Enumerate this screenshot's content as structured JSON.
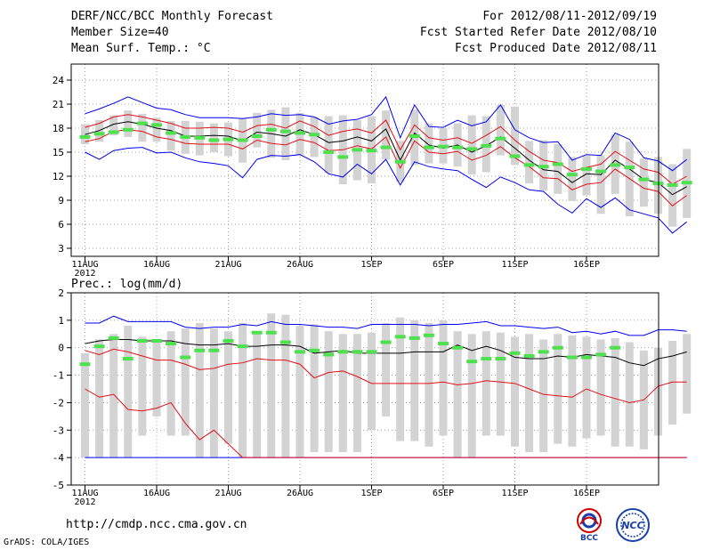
{
  "header": {
    "title": "DERF/NCC/BCC Monthly Forecast",
    "member_size": "Member Size=40",
    "variable": "Mean Surf. Temp.: °C",
    "period": "For 2012/08/11-2012/09/19",
    "started": "Fcst Started Refer Date 2012/08/10",
    "produced": "Fcst Produced Date 2012/08/11"
  },
  "footer": {
    "url": "http://cmdp.ncc.cma.gov.cn",
    "grads": "GrADS: COLA/IGES",
    "logo_left": "BCC",
    "logo_right": "NCC"
  },
  "colors": {
    "mean": "#000000",
    "inner": "#e0101a",
    "outer": "#0000ee",
    "obs": "#4ee04e",
    "box": "#d3d3d3",
    "grid": "#888888"
  },
  "chart_data": [
    {
      "type": "line",
      "title": "Mean Surf. Temp.: °C",
      "x_ticks": [
        "11AUG\n2012",
        "16AUG",
        "21AUG",
        "26AUG",
        "1SEP",
        "6SEP",
        "11SEP",
        "16SEP"
      ],
      "ylim": [
        2,
        26
      ],
      "yticks": [
        3,
        6,
        9,
        12,
        15,
        18,
        21,
        24
      ],
      "series": [
        {
          "name": "max",
          "values": [
            19.8,
            20.4,
            21.1,
            21.9,
            21.2,
            20.5,
            20.3,
            19.7,
            19.3,
            19.3,
            19.3,
            19.2,
            19.4,
            19.8,
            19.6,
            19.7,
            19.4,
            18.5,
            18.9,
            19.1,
            19.7,
            21.9,
            16.8,
            20.9,
            18.2,
            18.1,
            19.0,
            18.3,
            18.8,
            20.9,
            17.8,
            16.8,
            16.2,
            16.3,
            14.0,
            14.7,
            14.6,
            17.4,
            16.6,
            14.3,
            13.9,
            12.7,
            14.1
          ]
        },
        {
          "name": "p75",
          "values": [
            18.1,
            18.6,
            19.4,
            19.7,
            19.4,
            19.0,
            18.6,
            18.0,
            18.0,
            18.1,
            18.0,
            17.5,
            18.3,
            18.5,
            18.0,
            18.9,
            18.2,
            17.1,
            17.6,
            17.9,
            17.4,
            19.0,
            15.3,
            18.4,
            16.8,
            16.5,
            16.8,
            16.1,
            17.1,
            18.2,
            16.5,
            15.1,
            14.0,
            13.7,
            12.6,
            13.1,
            13.5,
            15.1,
            14.0,
            12.9,
            12.5,
            11.0,
            12.0
          ]
        },
        {
          "name": "mean",
          "values": [
            17.2,
            17.7,
            18.5,
            18.8,
            18.5,
            18.0,
            17.7,
            17.0,
            17.0,
            17.1,
            17.0,
            16.4,
            17.5,
            17.3,
            17.0,
            17.8,
            17.2,
            16.2,
            16.4,
            16.9,
            16.4,
            17.9,
            14.0,
            17.4,
            15.9,
            15.5,
            15.9,
            15.0,
            15.8,
            16.9,
            15.5,
            14.0,
            12.8,
            12.6,
            11.2,
            12.3,
            12.2,
            14.0,
            12.9,
            11.6,
            11.2,
            9.7,
            10.7
          ]
        },
        {
          "name": "p25",
          "values": [
            16.3,
            16.7,
            17.6,
            17.8,
            17.6,
            16.9,
            16.6,
            16.1,
            16.0,
            16.0,
            16.0,
            15.4,
            16.5,
            16.1,
            15.9,
            16.6,
            16.2,
            15.2,
            15.3,
            15.8,
            15.4,
            16.9,
            13.0,
            16.4,
            15.0,
            14.8,
            15.1,
            14.0,
            14.6,
            15.7,
            14.3,
            13.2,
            11.8,
            11.7,
            10.3,
            11.0,
            11.2,
            12.9,
            11.7,
            10.5,
            10.1,
            8.3,
            9.6
          ]
        },
        {
          "name": "min",
          "values": [
            15.0,
            14.1,
            15.2,
            15.5,
            15.6,
            14.9,
            15.0,
            14.3,
            13.8,
            13.6,
            13.3,
            11.8,
            14.1,
            14.6,
            14.5,
            14.7,
            13.8,
            12.3,
            11.9,
            13.5,
            12.3,
            14.1,
            10.9,
            13.8,
            13.2,
            12.9,
            12.7,
            11.6,
            10.6,
            11.9,
            11.2,
            10.3,
            10.1,
            8.5,
            7.4,
            9.2,
            8.1,
            9.3,
            7.8,
            7.3,
            6.8,
            4.9,
            6.3
          ]
        },
        {
          "name": "obs",
          "values": [
            16.9,
            17.3,
            17.5,
            17.8,
            18.6,
            18.4,
            17.4,
            16.9,
            16.8,
            16.5,
            16.6,
            16.5,
            17.0,
            17.8,
            17.6,
            17.4,
            17.2,
            15.0,
            14.4,
            15.3,
            15.2,
            15.6,
            13.8,
            17.0,
            15.6,
            15.7,
            15.6,
            15.4,
            15.8,
            16.7,
            14.5,
            13.4,
            13.2,
            13.5,
            12.2,
            12.9,
            12.6,
            13.4,
            13.1,
            11.6,
            11.1,
            10.9,
            11.2
          ]
        },
        {
          "name": "box_high",
          "values": [
            18.5,
            19.0,
            19.6,
            20.2,
            19.8,
            19.3,
            18.9,
            18.9,
            18.8,
            18.6,
            18.7,
            19.2,
            19.9,
            20.3,
            20.6,
            19.9,
            19.4,
            19.5,
            19.6,
            19.0,
            19.5,
            20.2,
            16.4,
            20.3,
            18.6,
            18.0,
            18.6,
            19.6,
            19.5,
            20.9,
            20.7,
            16.4,
            16.5,
            16.0,
            14.4,
            14.6,
            14.6,
            17.2,
            16.3,
            14.2,
            14.4,
            13.5,
            15.4
          ]
        },
        {
          "name": "box_low",
          "values": [
            16.0,
            16.3,
            17.1,
            16.9,
            16.3,
            16.3,
            15.2,
            14.8,
            14.6,
            15.0,
            14.5,
            13.7,
            15.6,
            14.3,
            14.0,
            14.7,
            14.4,
            12.4,
            11.0,
            11.5,
            11.1,
            14.1,
            11.3,
            13.4,
            13.6,
            13.6,
            13.2,
            12.2,
            12.5,
            14.6,
            13.4,
            11.1,
            10.2,
            9.8,
            8.9,
            9.6,
            7.3,
            9.8,
            7.0,
            8.2,
            7.3,
            5.7,
            6.8
          ]
        }
      ]
    },
    {
      "type": "line",
      "title": "Prec.: log(mm/d)",
      "x_ticks": [
        "11AUG\n2012",
        "16AUG",
        "21AUG",
        "26AUG",
        "1SEP",
        "6SEP",
        "11SEP",
        "16SEP"
      ],
      "ylim": [
        -5,
        2
      ],
      "yticks": [
        -5,
        -4,
        -3,
        -2,
        -1,
        0,
        1,
        2
      ],
      "series": [
        {
          "name": "max",
          "values": [
            0.9,
            0.9,
            1.15,
            0.95,
            0.95,
            0.95,
            0.95,
            0.75,
            0.7,
            0.75,
            0.75,
            0.85,
            0.8,
            0.95,
            0.85,
            0.85,
            0.8,
            0.75,
            0.75,
            0.7,
            0.85,
            0.85,
            0.85,
            0.85,
            0.8,
            0.85,
            0.85,
            0.9,
            0.95,
            0.8,
            0.8,
            0.75,
            0.7,
            0.75,
            0.55,
            0.6,
            0.5,
            0.6,
            0.45,
            0.45,
            0.65,
            0.65,
            0.6
          ]
        },
        {
          "name": "mean",
          "values": [
            0.15,
            0.25,
            0.3,
            0.3,
            0.25,
            0.25,
            0.25,
            0.15,
            0.1,
            0.1,
            0.15,
            0.05,
            0.05,
            0.1,
            0.1,
            0.05,
            -0.2,
            -0.15,
            -0.1,
            -0.2,
            -0.2,
            -0.2,
            -0.2,
            -0.15,
            -0.15,
            -0.15,
            0.1,
            -0.1,
            0.05,
            -0.1,
            -0.35,
            -0.4,
            -0.4,
            -0.3,
            -0.35,
            -0.25,
            -0.3,
            -0.35,
            -0.55,
            -0.65,
            -0.4,
            -0.3,
            -0.15
          ]
        },
        {
          "name": "inner_low",
          "values": [
            -0.1,
            -0.25,
            -0.05,
            -0.15,
            -0.3,
            -0.45,
            -0.45,
            -0.6,
            -0.8,
            -0.75,
            -0.6,
            -0.55,
            -0.4,
            -0.45,
            -0.45,
            -0.6,
            -1.1,
            -0.9,
            -0.85,
            -1.05,
            -1.3,
            -1.3,
            -1.3,
            -1.3,
            -1.3,
            -1.25,
            -1.35,
            -1.3,
            -1.2,
            -1.25,
            -1.3,
            -1.5,
            -1.7,
            -1.75,
            -1.8,
            -1.5,
            -1.7,
            -1.85,
            -2.0,
            -1.9,
            -1.4,
            -1.25,
            -1.25
          ]
        },
        {
          "name": "min_trace",
          "values": [
            -1.5,
            -1.8,
            -1.7,
            -2.25,
            -2.3,
            -2.2,
            -2.0,
            -2.75,
            -3.35,
            -3.0,
            -3.5,
            -4.0,
            -4.0,
            -4.0,
            -4.0,
            -4.0,
            -4.0,
            -4.0,
            -4.0,
            -4.0,
            -4.0,
            -4.0,
            -4.0,
            -4.0,
            -4.0,
            -4.0,
            -4.0,
            -4.0,
            -4.0,
            -4.0,
            -4.0,
            -4.0,
            -4.0,
            -4.0,
            -4.0,
            -4.0,
            -4.0,
            -4.0,
            -4.0,
            -4.0,
            -4.0,
            -4.0,
            -4.0
          ]
        },
        {
          "name": "floor",
          "values": [
            -4,
            -4,
            -4,
            -4,
            -4,
            -4,
            -4,
            -4,
            -4,
            -4,
            -4,
            -4,
            -4,
            -4,
            -4,
            -4,
            -4,
            -4,
            -4,
            -4,
            -4,
            -4,
            -4,
            -4,
            -4,
            -4,
            -4,
            -4,
            -4,
            -4,
            -4,
            -4,
            -4,
            -4,
            -4,
            -4,
            -4,
            -4,
            -4,
            -4,
            -4,
            -4,
            -4
          ]
        },
        {
          "name": "obs",
          "values": [
            -0.6,
            0.05,
            0.35,
            -0.4,
            0.25,
            0.25,
            0.15,
            -0.35,
            -0.1,
            -0.1,
            0.25,
            0.05,
            0.55,
            0.55,
            0.2,
            -0.15,
            -0.1,
            -0.25,
            -0.15,
            -0.15,
            -0.15,
            0.2,
            0.4,
            0.35,
            0.45,
            0.15,
            0.0,
            -0.5,
            -0.4,
            -0.4,
            -0.2,
            -0.3,
            -0.15,
            0.0,
            -0.35,
            -0.35,
            -0.25,
            0.0,
            null,
            null,
            null,
            null,
            null
          ]
        },
        {
          "name": "box_high",
          "values": [
            -0.2,
            0.3,
            0.5,
            0.8,
            0.4,
            0.3,
            0.6,
            0.7,
            0.9,
            0.7,
            0.6,
            0.9,
            0.5,
            1.25,
            1.2,
            0.8,
            0.85,
            0.6,
            0.5,
            0.5,
            0.55,
            0.9,
            1.1,
            1.0,
            0.9,
            1.0,
            0.6,
            0.5,
            0.6,
            0.55,
            0.4,
            0.5,
            0.3,
            0.5,
            0.45,
            0.4,
            0.3,
            0.35,
            0.2,
            -0.1,
            0.0,
            0.25,
            0.5
          ]
        },
        {
          "name": "box_low",
          "values": [
            -4.0,
            -4.0,
            -4.0,
            -4.0,
            -3.2,
            -2.5,
            -3.2,
            -3.2,
            -4.0,
            -4.0,
            -3.5,
            -4.0,
            -4.0,
            -4.0,
            -4.0,
            -4.0,
            -3.8,
            -3.8,
            -3.8,
            -3.8,
            -3.0,
            -2.5,
            -3.4,
            -3.4,
            -3.6,
            -3.2,
            -4.0,
            -4.0,
            -3.2,
            -3.2,
            -3.6,
            -3.8,
            -3.8,
            -3.5,
            -3.6,
            -3.3,
            -3.2,
            -3.6,
            -3.6,
            -3.7,
            -3.2,
            -2.8,
            -2.4
          ]
        }
      ]
    }
  ]
}
